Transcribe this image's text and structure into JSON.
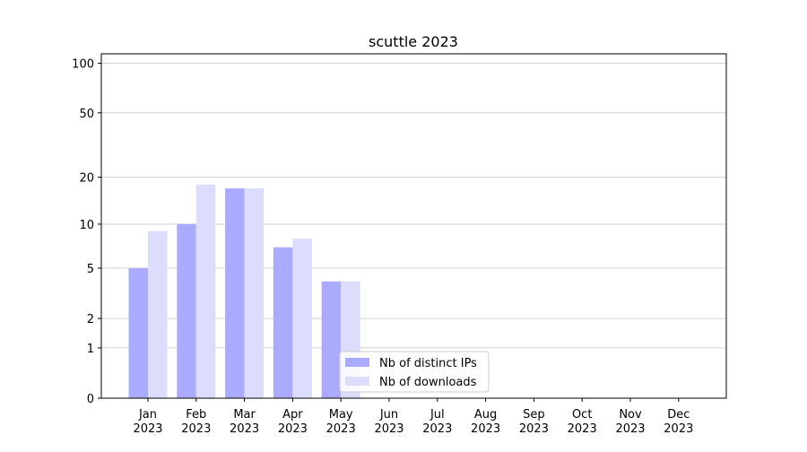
{
  "chart_data": {
    "type": "bar",
    "title": "scuttle 2023",
    "categories": [
      "Jan 2023",
      "Feb 2023",
      "Mar 2023",
      "Apr 2023",
      "May 2023",
      "Jun 2023",
      "Jul 2023",
      "Aug 2023",
      "Sep 2023",
      "Oct 2023",
      "Nov 2023",
      "Dec 2023"
    ],
    "series": [
      {
        "name": "Nb of distinct IPs",
        "color": "#aaaaff",
        "values": [
          5,
          10,
          17,
          7,
          4,
          0,
          0,
          0,
          0,
          0,
          0,
          0
        ]
      },
      {
        "name": "Nb of downloads",
        "color": "#dcdcfc",
        "values": [
          9,
          18,
          17,
          8,
          4,
          0,
          0,
          0,
          0,
          0,
          0,
          0
        ]
      }
    ],
    "yscale": "log1p",
    "ylim": [
      0,
      114
    ],
    "yticks": [
      0,
      1,
      2,
      5,
      10,
      20,
      50,
      100
    ],
    "grid": true,
    "legend": "lower center"
  }
}
